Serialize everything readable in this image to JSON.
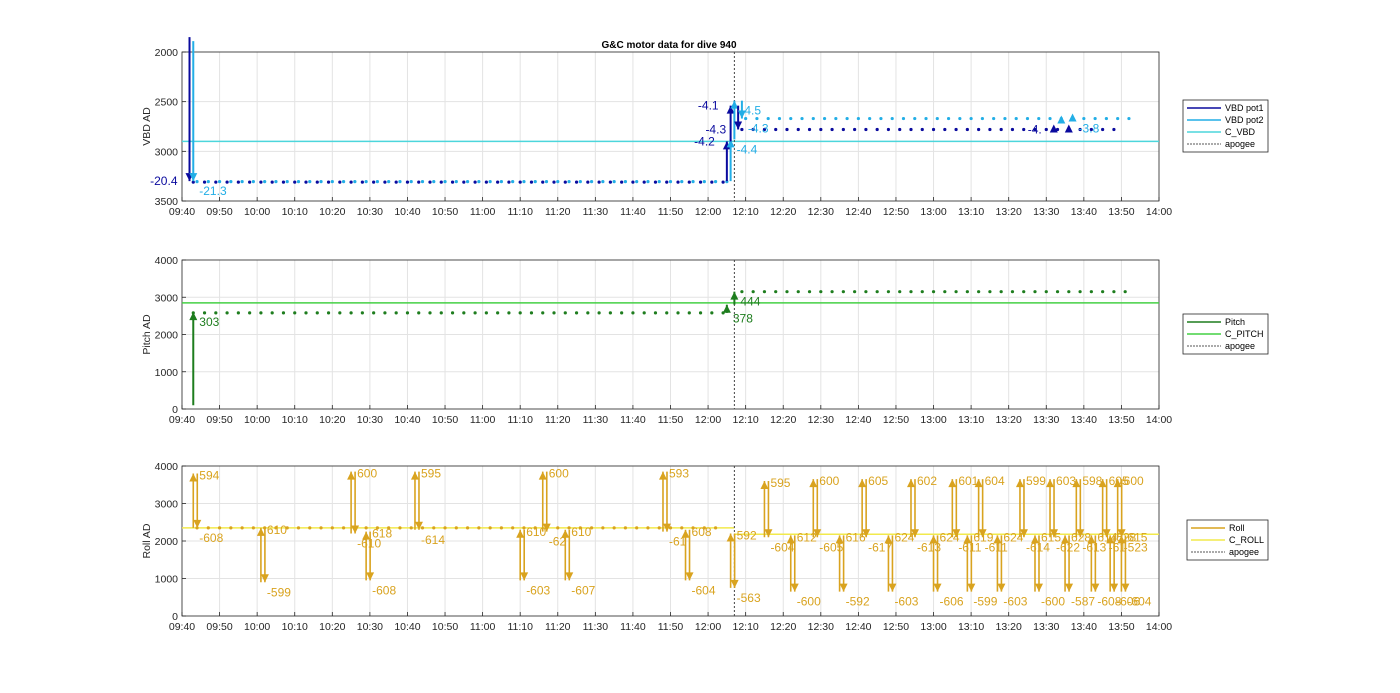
{
  "title": "G&C motor data for dive 940",
  "apogee_time": "12:07",
  "panels": [
    {
      "id": "vbd",
      "ylabel": "VBD AD",
      "ylim": [
        2000,
        3500
      ],
      "y_reversed": true,
      "yticks": [
        2000,
        2500,
        3000,
        3500
      ],
      "legend": [
        {
          "label": "VBD pot1",
          "color": "#0a0a9e",
          "style": "solid"
        },
        {
          "label": "VBD pot2",
          "color": "#22aee6",
          "style": "solid"
        },
        {
          "label": "C_VBD",
          "color": "#4cd6dc",
          "style": "solid"
        },
        {
          "label": "apogee",
          "color": "#555555",
          "style": "dotted"
        }
      ],
      "ref_line": {
        "name": "C_VBD",
        "value": 2900,
        "color": "#4cd6dc"
      },
      "series": [
        {
          "name": "VBD pot1",
          "color": "#0a0a9e",
          "phases": [
            {
              "t0": "09:43",
              "t1": "12:05",
              "step": 3,
              "value": 3310
            },
            {
              "t0": "12:09",
              "t1": "13:50",
              "step": 3,
              "value": 2780
            }
          ]
        },
        {
          "name": "VBD pot2",
          "color": "#22aee6",
          "phases": [
            {
              "t0": "09:44",
              "t1": "12:05",
              "step": 3,
              "value": 3305
            },
            {
              "t0": "12:10",
              "t1": "13:53",
              "step": 3,
              "value": 2670
            }
          ]
        }
      ],
      "moves": [
        {
          "t": "09:42",
          "from": 1850,
          "to": 3300,
          "color": "#0a0a9e",
          "label": "-20.4",
          "lpos": "left"
        },
        {
          "t": "09:43",
          "from": 1890,
          "to": 3300,
          "color": "#22aee6",
          "label": "-21.3",
          "lpos": "below-right"
        },
        {
          "t": "12:05",
          "from": 3300,
          "to": 2900,
          "color": "#0a0a9e",
          "label": "-4.2",
          "lpos": "left"
        },
        {
          "t": "12:06",
          "from": 3300,
          "to": 2880,
          "color": "#22aee6",
          "label": "-4.4",
          "lpos": "below-right"
        },
        {
          "t": "12:06",
          "from": 2900,
          "to": 2540,
          "color": "#0a0a9e",
          "label": "-4.1",
          "lpos": "left"
        },
        {
          "t": "12:07",
          "from": 2880,
          "to": 2490,
          "color": "#22aee6",
          "label": "-4.5",
          "lpos": "right"
        },
        {
          "t": "12:08",
          "from": 2540,
          "to": 2780,
          "color": "#0a0a9e",
          "label": "-4.3",
          "lpos": "left"
        },
        {
          "t": "12:09",
          "from": 2490,
          "to": 2670,
          "color": "#22aee6",
          "label": "-4.3",
          "lpos": "right"
        },
        {
          "t": "13:32",
          "from": 2780,
          "to": 2780,
          "color": "#0a0a9e",
          "label": "-4.",
          "lpos": "left"
        },
        {
          "t": "13:34",
          "from": 2690,
          "to": 2690,
          "color": "#22aee6",
          "label": "",
          "lpos": "right"
        },
        {
          "t": "13:36",
          "from": 2780,
          "to": 2780,
          "color": "#0a0a9e",
          "label": "",
          "lpos": "left"
        },
        {
          "t": "13:37",
          "from": 2670,
          "to": 2670,
          "color": "#22aee6",
          "label": "-3.8",
          "lpos": "right"
        }
      ]
    },
    {
      "id": "pitch",
      "ylabel": "Pitch AD",
      "ylim": [
        0,
        4000
      ],
      "y_reversed": false,
      "yticks": [
        0,
        1000,
        2000,
        3000,
        4000
      ],
      "legend": [
        {
          "label": "Pitch",
          "color": "#1e7d1e",
          "style": "solid"
        },
        {
          "label": "C_PITCH",
          "color": "#44d044",
          "style": "solid"
        },
        {
          "label": "apogee",
          "color": "#555555",
          "style": "dotted"
        }
      ],
      "ref_line": {
        "name": "C_PITCH",
        "value": 2850,
        "color": "#44d044"
      },
      "series": [
        {
          "name": "Pitch",
          "color": "#1e7d1e",
          "phases": [
            {
              "t0": "09:43",
              "t1": "12:05",
              "step": 3,
              "value": 2580
            },
            {
              "t0": "12:09",
              "t1": "13:53",
              "step": 3,
              "value": 3150
            }
          ]
        }
      ],
      "moves": [
        {
          "t": "09:43",
          "from": 100,
          "to": 2600,
          "color": "#1e7d1e",
          "label": "303",
          "lpos": "below-right"
        },
        {
          "t": "12:05",
          "from": 2580,
          "to": 2800,
          "color": "#1e7d1e",
          "label": "378",
          "lpos": "below-right-far"
        },
        {
          "t": "12:07",
          "from": 2800,
          "to": 3150,
          "color": "#1e7d1e",
          "label": "444",
          "lpos": "below-right"
        }
      ]
    },
    {
      "id": "roll",
      "ylabel": "Roll AD",
      "ylim": [
        0,
        4000
      ],
      "y_reversed": false,
      "yticks": [
        0,
        1000,
        2000,
        3000,
        4000
      ],
      "legend": [
        {
          "label": "Roll",
          "color": "#d9a31f",
          "style": "solid"
        },
        {
          "label": "C_ROLL",
          "color": "#f2ea4c",
          "style": "solid"
        },
        {
          "label": "apogee",
          "color": "#555555",
          "style": "dotted"
        }
      ],
      "ref_line": {
        "name": "C_ROLL",
        "value": 2350,
        "before_apogee": 2350,
        "after_apogee": 2180,
        "color": "#f2ea4c"
      },
      "series": [
        {
          "name": "Roll",
          "color": "#d9a31f",
          "phases": [
            {
              "t0": "09:44",
              "t1": "12:04",
              "step": 3,
              "value": 2350
            }
          ]
        }
      ],
      "pulses": [
        {
          "t": "09:43",
          "up": "594",
          "down": "-608",
          "peak": 3800,
          "trough": 2350
        },
        {
          "t": "10:01",
          "up": "610",
          "down": "-599",
          "peak": 2350,
          "trough": 900
        },
        {
          "t": "10:25",
          "up": "600",
          "down": "-610",
          "peak": 3850,
          "trough": 2200
        },
        {
          "t": "10:29",
          "up": "618",
          "down": "-608",
          "peak": 2250,
          "trough": 950
        },
        {
          "t": "10:42",
          "up": "595",
          "down": "-614",
          "peak": 3850,
          "trough": 2300
        },
        {
          "t": "11:10",
          "up": "610",
          "down": "-603",
          "peak": 2300,
          "trough": 950
        },
        {
          "t": "11:16",
          "up": "600",
          "down": "-62",
          "peak": 3850,
          "trough": 2250
        },
        {
          "t": "11:22",
          "up": "610",
          "down": "-607",
          "peak": 2300,
          "trough": 950
        },
        {
          "t": "11:48",
          "up": "593",
          "down": "-61",
          "peak": 3850,
          "trough": 2250
        },
        {
          "t": "11:54",
          "up": "608",
          "down": "-604",
          "peak": 2300,
          "trough": 950
        },
        {
          "t": "12:06",
          "up": "592",
          "down": "-563",
          "peak": 2200,
          "trough": 750
        },
        {
          "t": "12:15",
          "up": "595",
          "down": "-604",
          "peak": 3600,
          "trough": 2100
        },
        {
          "t": "12:22",
          "up": "612",
          "down": "-600",
          "peak": 2150,
          "trough": 650
        },
        {
          "t": "12:28",
          "up": "600",
          "down": "-605",
          "peak": 3650,
          "trough": 2100
        },
        {
          "t": "12:35",
          "up": "616",
          "down": "-592",
          "peak": 2150,
          "trough": 650
        },
        {
          "t": "12:41",
          "up": "605",
          "down": "-617",
          "peak": 3650,
          "trough": 2100
        },
        {
          "t": "12:48",
          "up": "624",
          "down": "-603",
          "peak": 2150,
          "trough": 650
        },
        {
          "t": "12:54",
          "up": "602",
          "down": "-613",
          "peak": 3650,
          "trough": 2100
        },
        {
          "t": "13:00",
          "up": "624",
          "down": "-606",
          "peak": 2150,
          "trough": 650
        },
        {
          "t": "13:05",
          "up": "601",
          "down": "-611",
          "peak": 3650,
          "trough": 2100
        },
        {
          "t": "13:09",
          "up": "619",
          "down": "-599",
          "peak": 2150,
          "trough": 650
        },
        {
          "t": "13:12",
          "up": "604",
          "down": "-611",
          "peak": 3650,
          "trough": 2100
        },
        {
          "t": "13:17",
          "up": "624",
          "down": "-603",
          "peak": 2150,
          "trough": 650
        },
        {
          "t": "13:23",
          "up": "599",
          "down": "-614",
          "peak": 3650,
          "trough": 2100
        },
        {
          "t": "13:27",
          "up": "615",
          "down": "-600",
          "peak": 2150,
          "trough": 650
        },
        {
          "t": "13:31",
          "up": "603",
          "down": "-622",
          "peak": 3650,
          "trough": 2100
        },
        {
          "t": "13:35",
          "up": "628",
          "down": "-587",
          "peak": 2150,
          "trough": 650
        },
        {
          "t": "13:38",
          "up": "598",
          "down": "-613",
          "peak": 3650,
          "trough": 2100
        },
        {
          "t": "13:42",
          "up": "614",
          "down": "-608",
          "peak": 2150,
          "trough": 650
        },
        {
          "t": "13:45",
          "up": "605",
          "down": "-61",
          "peak": 3650,
          "trough": 2100
        },
        {
          "t": "13:47",
          "up": "628",
          "down": "-606",
          "peak": 2150,
          "trough": 650
        },
        {
          "t": "13:49",
          "up": "600",
          "down": "-523",
          "peak": 3650,
          "trough": 2100
        },
        {
          "t": "13:50",
          "up": "615",
          "down": "-604",
          "peak": 2150,
          "trough": 650
        }
      ]
    }
  ],
  "xticks": [
    "09:40",
    "09:50",
    "10:00",
    "10:10",
    "10:20",
    "10:30",
    "10:40",
    "10:50",
    "11:00",
    "11:10",
    "11:20",
    "11:30",
    "11:40",
    "11:50",
    "12:00",
    "12:10",
    "12:20",
    "12:30",
    "12:40",
    "12:50",
    "13:00",
    "13:10",
    "13:20",
    "13:30",
    "13:40",
    "13:50",
    "14:00"
  ],
  "xlim": [
    "09:40",
    "14:00"
  ]
}
